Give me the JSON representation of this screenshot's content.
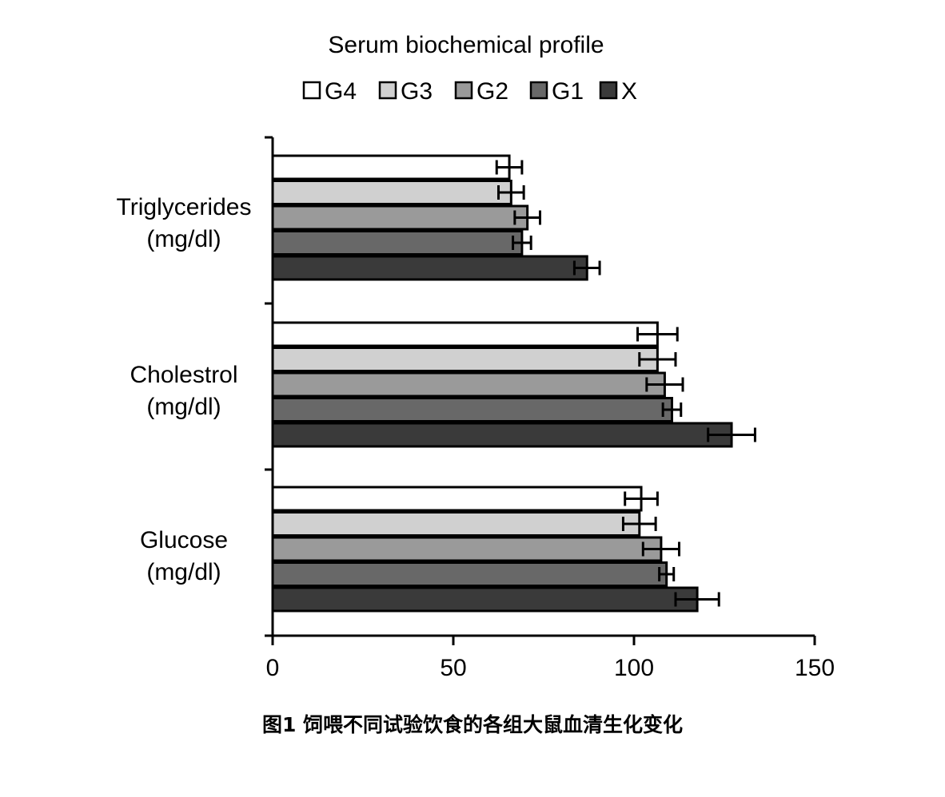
{
  "chart_data": {
    "type": "bar",
    "orientation": "horizontal",
    "title": "Serum biochemical profile",
    "categories": [
      {
        "line1": "Triglycerides",
        "line2": "(mg/dl)"
      },
      {
        "line1": "Cholestrol",
        "line2": "(mg/dl)"
      },
      {
        "line1": "Glucose",
        "line2": "(mg/dl)"
      }
    ],
    "series": [
      {
        "name": "G4",
        "color": "#ffffff",
        "values": [
          65.5,
          106.5,
          102
        ],
        "errors": [
          3.5,
          5.5,
          4.5
        ]
      },
      {
        "name": "G3",
        "color": "#d0d0d0",
        "values": [
          66,
          106.5,
          101.5
        ],
        "errors": [
          3.5,
          5,
          4.5
        ]
      },
      {
        "name": "G2",
        "color": "#9a9a9a",
        "values": [
          70.5,
          108.5,
          107.5
        ],
        "errors": [
          3.5,
          5,
          5
        ]
      },
      {
        "name": "G1",
        "color": "#686868",
        "values": [
          69,
          110.5,
          109
        ],
        "errors": [
          2.5,
          2.5,
          2
        ]
      },
      {
        "name": "X",
        "color": "#3a3a3a",
        "values": [
          87,
          127,
          117.5
        ],
        "errors": [
          3.5,
          6.5,
          6
        ]
      }
    ],
    "xlim": [
      0,
      150
    ],
    "xticks": [
      "0",
      "50",
      "100",
      "150"
    ],
    "legend": "top",
    "grid": false
  },
  "caption": "图1 饲喂不同试验饮食的各组大鼠血清生化变化"
}
